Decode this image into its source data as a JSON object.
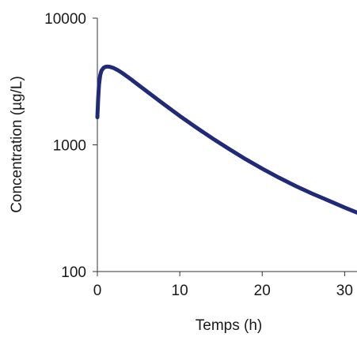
{
  "chart_data": {
    "type": "line",
    "title": "",
    "xlabel": "Temps (h)",
    "ylabel": "Concentration (µg/L)",
    "xlim": [
      0,
      31.5
    ],
    "ylim": [
      100,
      10000
    ],
    "yscale": "log",
    "grid": false,
    "x_ticks": [
      0,
      10,
      20,
      30
    ],
    "x_tick_labels": [
      "0",
      "10",
      "20",
      "30"
    ],
    "y_ticks": [
      100,
      1000,
      10000
    ],
    "y_tick_labels": [
      "100",
      "1000",
      "10000"
    ],
    "line_color": "#1f2a7a",
    "series": [
      {
        "x": [
          0.0,
          0.1,
          0.2,
          0.35,
          0.5,
          0.75,
          1.0,
          1.25,
          1.5,
          2.0,
          2.5,
          3.0,
          4.0,
          5.0,
          6.0,
          8.0,
          10.0,
          12.0,
          14.0,
          16.0,
          18.0,
          20.0,
          22.0,
          24.0,
          26.0,
          28.0,
          30.0,
          31.5
        ],
        "y": [
          1650,
          2300,
          3000,
          3550,
          3850,
          4050,
          4130,
          4150,
          4130,
          4030,
          3880,
          3700,
          3320,
          2960,
          2640,
          2110,
          1690,
          1370,
          1120,
          925,
          770,
          648,
          552,
          475,
          414,
          364,
          320,
          292
        ]
      }
    ]
  }
}
